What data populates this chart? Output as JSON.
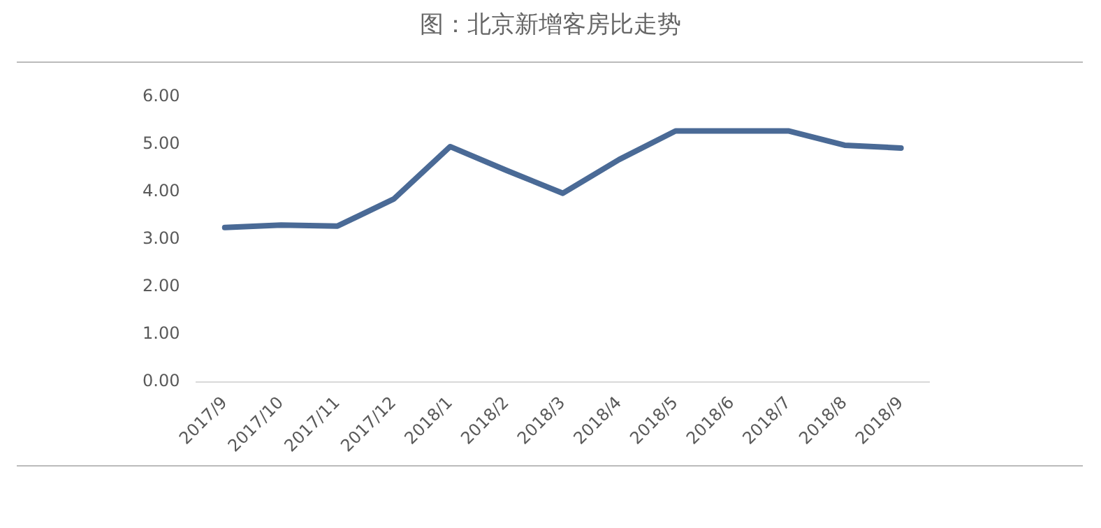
{
  "chart_data": {
    "type": "line",
    "title": "图：北京新增客房比走势",
    "categories": [
      "2017/9",
      "2017/10",
      "2017/11",
      "2017/12",
      "2018/1",
      "2018/2",
      "2018/3",
      "2018/4",
      "2018/5",
      "2018/6",
      "2018/7",
      "2018/8",
      "2018/9"
    ],
    "series": [
      {
        "color": "#4a6a96",
        "values": [
          3.25,
          3.3,
          3.28,
          3.85,
          4.95,
          4.45,
          3.97,
          4.68,
          5.28,
          5.28,
          5.28,
          4.98,
          4.92
        ]
      }
    ],
    "ylim": [
      0,
      6
    ],
    "yticks": [
      {
        "value": 0,
        "label": "0.00"
      },
      {
        "value": 1,
        "label": "1.00"
      },
      {
        "value": 2,
        "label": "2.00"
      },
      {
        "value": 3,
        "label": "3.00"
      },
      {
        "value": 4,
        "label": "4.00"
      },
      {
        "value": 5,
        "label": "5.00"
      },
      {
        "value": 6,
        "label": "6.00"
      }
    ],
    "grid": false,
    "legend": false,
    "marker": "none",
    "line_style": "solid"
  }
}
